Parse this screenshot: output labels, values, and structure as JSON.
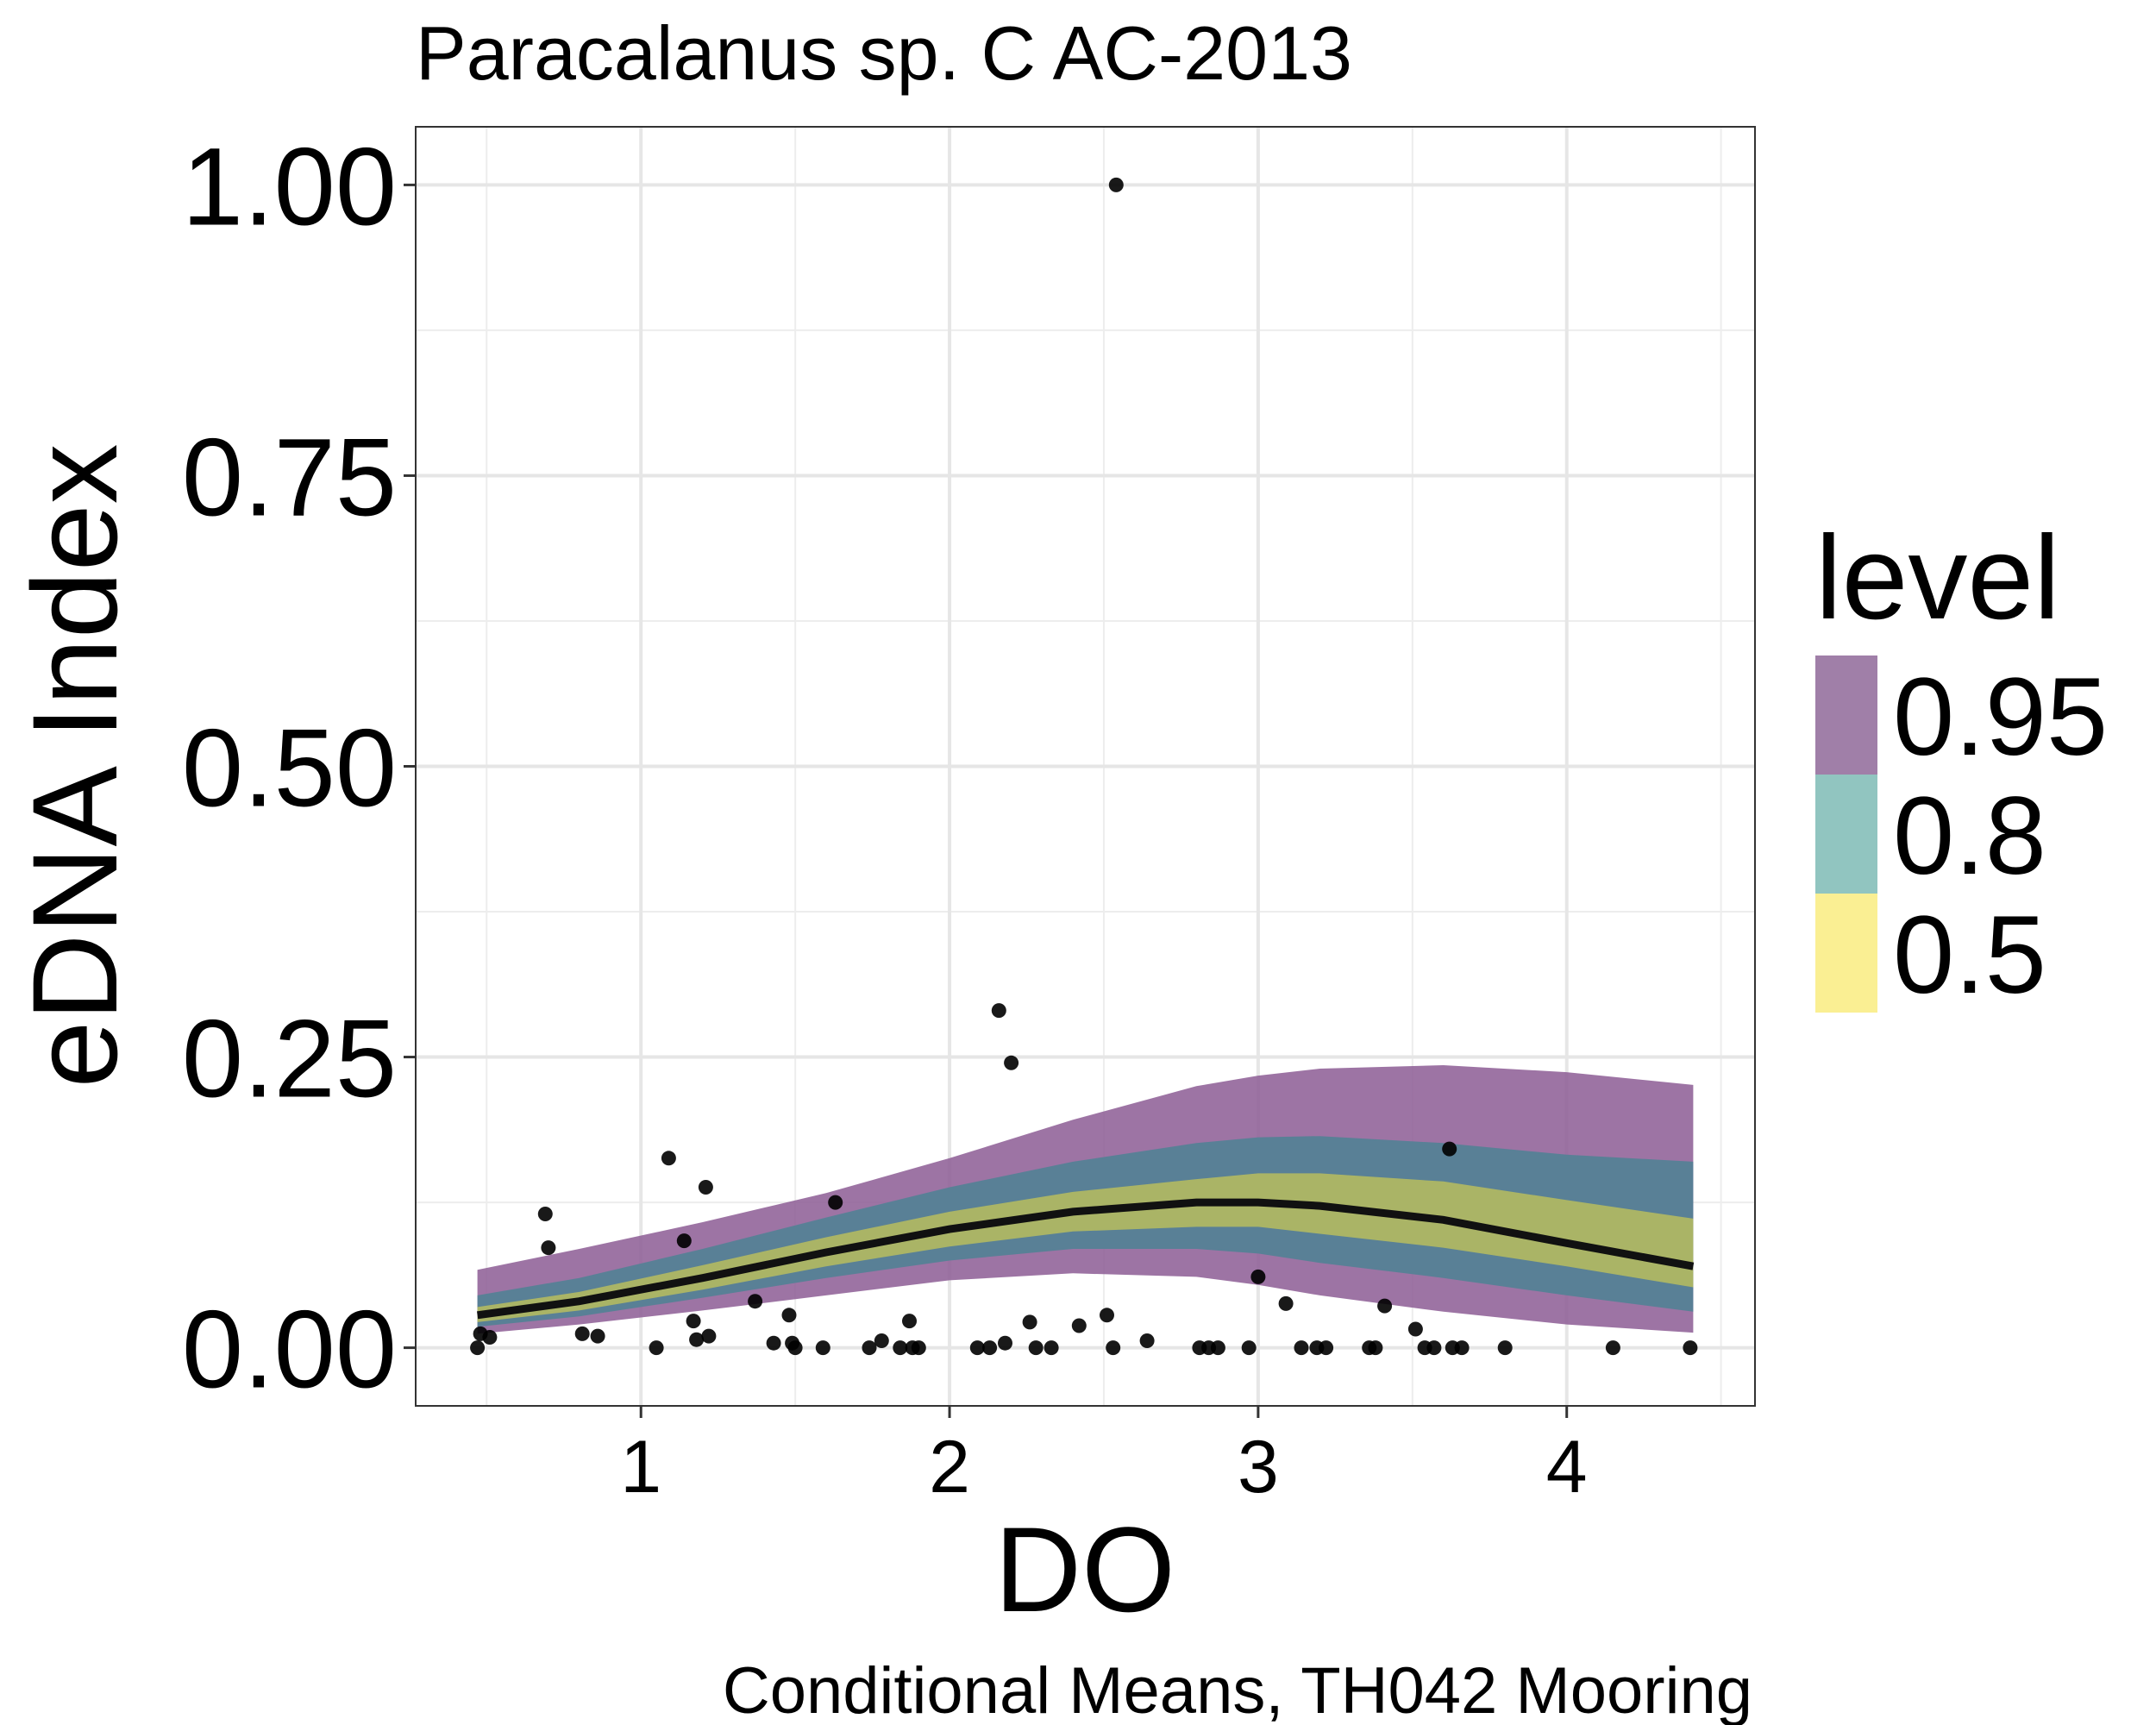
{
  "chart_data": {
    "type": "scatter",
    "title": "Paracalanus sp. C AC-2013",
    "xlabel": "DO",
    "ylabel": "eDNA Index",
    "caption": "Conditional Means, TH042 Mooring",
    "xlim": [
      0.27,
      4.61
    ],
    "ylim": [
      -0.05,
      1.05
    ],
    "x_ticks": [
      1,
      2,
      3,
      4
    ],
    "x_tick_labels": [
      "1",
      "2",
      "3",
      "4"
    ],
    "y_ticks": [
      0,
      0.25,
      0.5,
      0.75,
      1.0
    ],
    "y_tick_labels": [
      "0.00",
      "0.25",
      "0.50",
      "0.75",
      "1.00"
    ],
    "grid": true,
    "legend": {
      "title": "level",
      "position": "right",
      "entries": [
        {
          "label": "0.95",
          "color": "#a07fa8"
        },
        {
          "label": "0.8",
          "color": "#91c5c0"
        },
        {
          "label": "0.5",
          "color": "#faef93"
        }
      ]
    },
    "line_color": "#111111",
    "band_colors": {
      "0.95": "#8c5c94",
      "0.8": "#4e8294",
      "0.5": "#b9bd5e"
    },
    "band_x": [
      0.47,
      0.8,
      1.2,
      1.6,
      2.0,
      2.4,
      2.8,
      3.0,
      3.2,
      3.6,
      4.0,
      4.41
    ],
    "mean": [
      0.028,
      0.04,
      0.06,
      0.082,
      0.102,
      0.117,
      0.125,
      0.125,
      0.122,
      0.11,
      0.09,
      0.07
    ],
    "bands": [
      {
        "level": "0.95",
        "lower": [
          0.012,
          0.02,
          0.032,
          0.045,
          0.058,
          0.064,
          0.061,
          0.054,
          0.045,
          0.031,
          0.02,
          0.013
        ],
        "upper": [
          0.067,
          0.085,
          0.108,
          0.133,
          0.163,
          0.196,
          0.225,
          0.234,
          0.24,
          0.243,
          0.237,
          0.226
        ]
      },
      {
        "level": "0.8",
        "lower": [
          0.018,
          0.027,
          0.043,
          0.06,
          0.075,
          0.085,
          0.085,
          0.081,
          0.073,
          0.06,
          0.045,
          0.031
        ],
        "upper": [
          0.045,
          0.06,
          0.085,
          0.112,
          0.138,
          0.16,
          0.176,
          0.181,
          0.182,
          0.176,
          0.166,
          0.16
        ]
      },
      {
        "level": "0.5",
        "lower": [
          0.022,
          0.032,
          0.05,
          0.07,
          0.087,
          0.1,
          0.104,
          0.104,
          0.098,
          0.086,
          0.07,
          0.052
        ],
        "upper": [
          0.035,
          0.048,
          0.071,
          0.095,
          0.117,
          0.134,
          0.145,
          0.15,
          0.15,
          0.143,
          0.127,
          0.111
        ]
      }
    ],
    "points": {
      "x": [
        0.47,
        0.48,
        0.51,
        0.69,
        0.7,
        0.81,
        0.86,
        1.05,
        1.09,
        1.14,
        1.17,
        1.18,
        1.21,
        1.22,
        1.37,
        1.43,
        1.48,
        1.49,
        1.5,
        1.59,
        1.63,
        1.74,
        1.78,
        1.84,
        1.87,
        1.88,
        1.9,
        2.09,
        2.13,
        2.16,
        2.18,
        2.2,
        2.26,
        2.28,
        2.33,
        2.42,
        2.51,
        2.53,
        2.54,
        2.64,
        2.81,
        2.84,
        2.87,
        2.97,
        3.0,
        3.09,
        3.14,
        3.19,
        3.22,
        3.36,
        3.38,
        3.41,
        3.51,
        3.54,
        3.57,
        3.62,
        3.63,
        3.66,
        3.8,
        4.15,
        4.4
      ],
      "y": [
        0.0,
        0.012,
        0.009,
        0.115,
        0.086,
        0.012,
        0.01,
        0.0,
        0.163,
        0.092,
        0.023,
        0.007,
        0.138,
        0.01,
        0.04,
        0.004,
        0.028,
        0.004,
        0.0,
        0.0,
        0.125,
        0.0,
        0.006,
        0.0,
        0.023,
        0.0,
        0.0,
        0.0,
        0.0,
        0.29,
        0.004,
        0.245,
        0.022,
        0.0,
        0.0,
        0.019,
        0.028,
        0.0,
        1.0,
        0.006,
        0.0,
        0.0,
        0.0,
        0.0,
        0.061,
        0.038,
        0.0,
        0.0,
        0.0,
        0.0,
        0.0,
        0.036,
        0.016,
        0.0,
        0.0,
        0.171,
        0.0,
        0.0,
        0.0,
        0.0,
        0.0
      ]
    }
  }
}
